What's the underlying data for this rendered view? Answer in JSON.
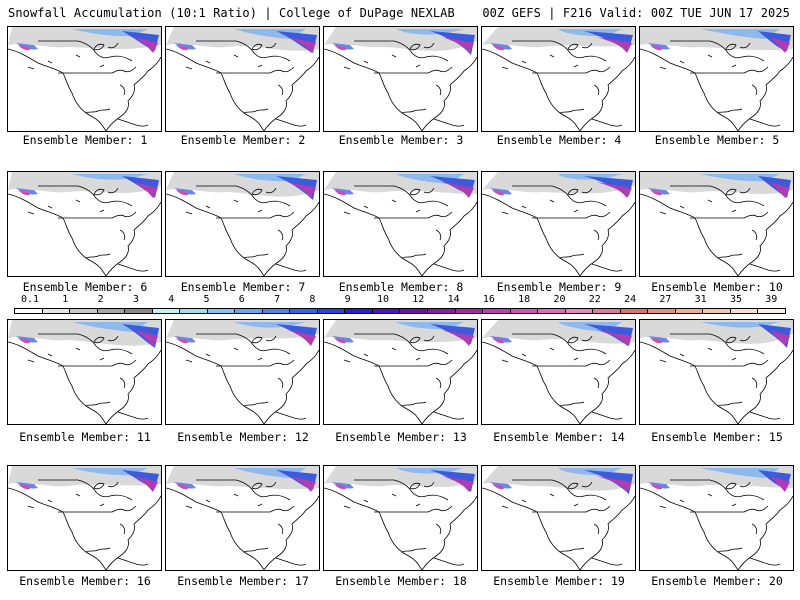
{
  "header": {
    "left_text": "Snowfall Accumulation (10:1 Ratio) | College of DuPage NEXLAB",
    "right_text": "00Z GEFS | F216 Valid: 00Z TUE JUN 17 2025"
  },
  "members": [
    {
      "caption": "Ensemble Member: 1"
    },
    {
      "caption": "Ensemble Member: 2"
    },
    {
      "caption": "Ensemble Member: 3"
    },
    {
      "caption": "Ensemble Member: 4"
    },
    {
      "caption": "Ensemble Member: 5"
    },
    {
      "caption": "Ensemble Member: 6"
    },
    {
      "caption": "Ensemble Member: 7"
    },
    {
      "caption": "Ensemble Member: 8"
    },
    {
      "caption": "Ensemble Member: 9"
    },
    {
      "caption": "Ensemble Member: 10"
    },
    {
      "caption": "Ensemble Member: 11"
    },
    {
      "caption": "Ensemble Member: 12"
    },
    {
      "caption": "Ensemble Member: 13"
    },
    {
      "caption": "Ensemble Member: 14"
    },
    {
      "caption": "Ensemble Member: 15"
    },
    {
      "caption": "Ensemble Member: 16"
    },
    {
      "caption": "Ensemble Member: 17"
    },
    {
      "caption": "Ensemble Member: 18"
    },
    {
      "caption": "Ensemble Member: 19"
    },
    {
      "caption": "Ensemble Member: 20"
    }
  ],
  "color_scale": {
    "labels": [
      "0.1",
      "1",
      "2",
      "3",
      "4",
      "5",
      "6",
      "7",
      "8",
      "9",
      "10",
      "12",
      "14",
      "16",
      "18",
      "20",
      "22",
      "24",
      "27",
      "31",
      "35",
      "39"
    ],
    "colors": [
      "#ffffff",
      "#e6e6e6",
      "#c8c8c8",
      "#a8a8a8",
      "#8a8a8a",
      "#bff5f0",
      "#9ee0f2",
      "#86c4f5",
      "#6aa6f5",
      "#4d86f2",
      "#3364ee",
      "#2442e6",
      "#2a1fd6",
      "#4a14c4",
      "#6a12b0",
      "#8a1aa6",
      "#a628a8",
      "#bf3cb0",
      "#d352b4",
      "#e26aba",
      "#ec86c0",
      "#e4769a",
      "#e0706e",
      "#e8907e",
      "#f0ae96",
      "#f6c8b0",
      "#fae0cc",
      "#fcefe4"
    ]
  }
}
